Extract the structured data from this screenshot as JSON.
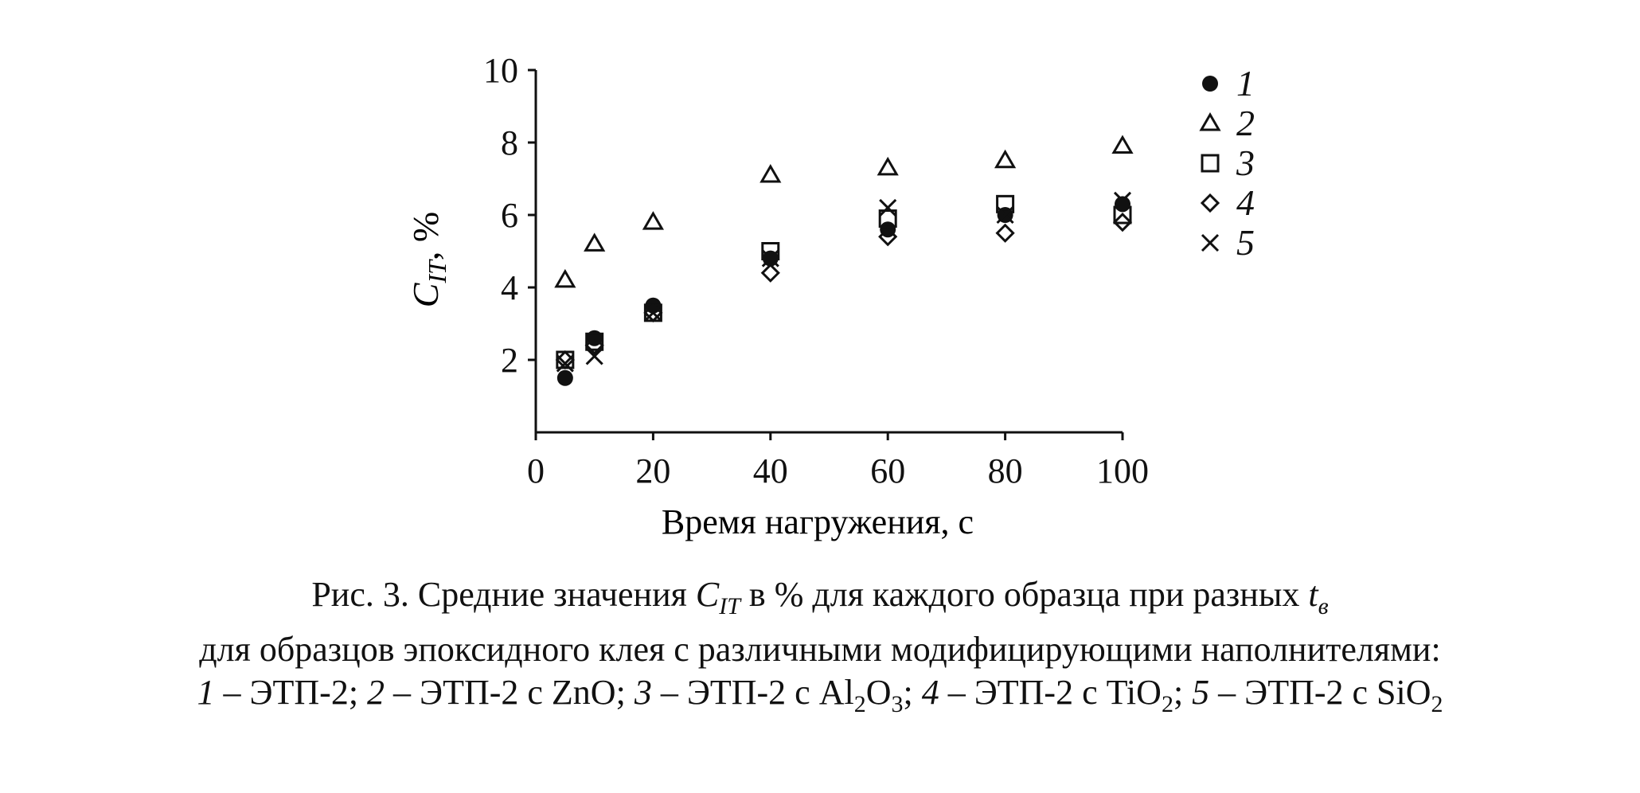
{
  "chart_data": {
    "type": "scatter",
    "xlabel": "Время нагружения, с",
    "ylabel": "C_IT, %",
    "ylabel_main": "C",
    "ylabel_sub": "IT",
    "ylabel_rest": ", %",
    "xlim": [
      0,
      100
    ],
    "ylim": [
      0,
      10
    ],
    "x_ticks": [
      0,
      20,
      40,
      60,
      80,
      100
    ],
    "y_ticks": [
      2,
      4,
      6,
      8,
      10
    ],
    "grid": false,
    "legend_placement": "top-right",
    "series": [
      {
        "name": "1",
        "marker": "circle",
        "x": [
          5,
          10,
          20,
          40,
          60,
          80,
          100
        ],
        "y": [
          1.5,
          2.6,
          3.5,
          4.8,
          5.6,
          6.0,
          6.3
        ]
      },
      {
        "name": "2",
        "marker": "triangle",
        "x": [
          5,
          10,
          20,
          40,
          60,
          80,
          100
        ],
        "y": [
          4.2,
          5.2,
          5.8,
          7.1,
          7.3,
          7.5,
          7.9
        ]
      },
      {
        "name": "3",
        "marker": "square",
        "x": [
          5,
          10,
          20,
          40,
          60,
          80,
          100
        ],
        "y": [
          2.0,
          2.5,
          3.3,
          5.0,
          5.9,
          6.3,
          6.0
        ]
      },
      {
        "name": "4",
        "marker": "diamond",
        "x": [
          5,
          10,
          20,
          40,
          60,
          80,
          100
        ],
        "y": [
          2.0,
          2.4,
          3.3,
          4.4,
          5.4,
          5.5,
          5.8
        ]
      },
      {
        "name": "5",
        "marker": "cross",
        "x": [
          5,
          10,
          20,
          40,
          60,
          80,
          100
        ],
        "y": [
          1.9,
          2.1,
          3.3,
          4.8,
          6.2,
          6.0,
          6.4
        ]
      }
    ]
  },
  "caption": {
    "line1": {
      "prefix": "Рис. 3. Средние значения ",
      "sym": "C",
      "sym_sub": "IT",
      "mid": " в % для каждого образца при разных ",
      "t": "t",
      "t_sub": "в"
    },
    "line2": "для образцов эпоксидного клея с различными модифицирующими наполнителями:",
    "line3": {
      "n1": "1",
      "t1": " – ЭТП-2; ",
      "n2": "2",
      "t2": " – ЭТП-2 с ZnO; ",
      "n3": "3",
      "t3a": " – ЭТП-2 с Al",
      "s3a": "2",
      "t3b": "O",
      "s3b": "3",
      "t3c": "; ",
      "n4": "4",
      "t4a": " – ЭТП-2 с TiO",
      "s4": "2",
      "t4b": "; ",
      "n5": "5",
      "t5a": " – ЭТП-2 с SiO",
      "s5": "2"
    }
  }
}
